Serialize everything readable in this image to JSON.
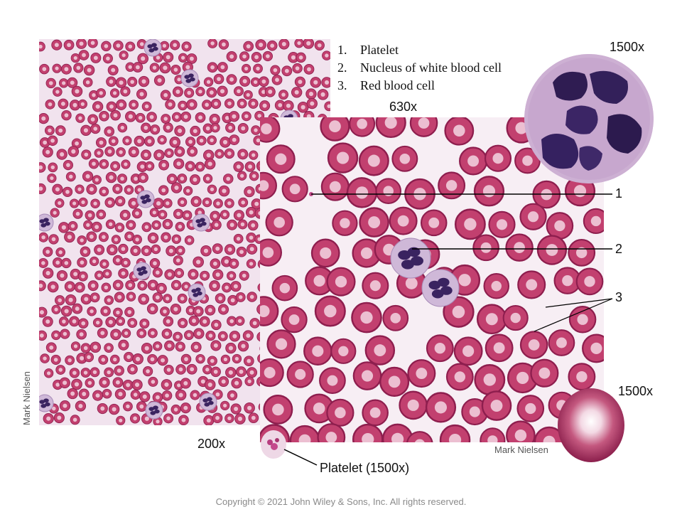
{
  "legend": {
    "items": [
      {
        "number": "1.",
        "label": "Platelet"
      },
      {
        "number": "2.",
        "label": "Nucleus of white blood cell"
      },
      {
        "number": "3.",
        "label": "Red blood cell"
      }
    ]
  },
  "magnifications": {
    "low": "200x",
    "medium": "630x",
    "wbc_inset": "1500x",
    "rbc_inset": "1500x",
    "platelet_inset": "Platelet (1500x)"
  },
  "callouts": {
    "platelet": "1",
    "wbc_nucleus": "2",
    "rbc": "3"
  },
  "credits": {
    "left": "Mark Nielsen",
    "right": "Mark Nielsen"
  },
  "copyright": "Copyright © 2021 John Wiley & Sons, Inc. All rights reserved.",
  "colors": {
    "rbc_fill": "#c2406f",
    "rbc_edge": "#8e1e4e",
    "rbc_center": "#f3d6e3",
    "wbc_nucleus": "#3a2360",
    "wbc_cytoplasm": "#cfb8d8",
    "platelet": "#c04a8a"
  }
}
